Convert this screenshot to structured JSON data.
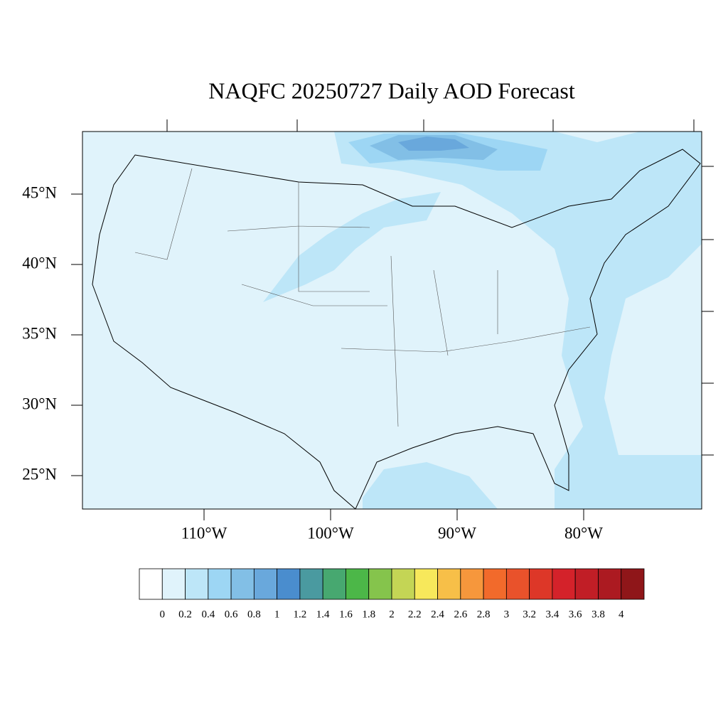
{
  "map": {
    "type": "map",
    "title": "NAQFC 20250727 Daily AOD Forecast",
    "lat_ticks": [
      {
        "value": 45,
        "label": "45°N"
      },
      {
        "value": 40,
        "label": "40°N"
      },
      {
        "value": 35,
        "label": "35°N"
      },
      {
        "value": 30,
        "label": "30°N"
      },
      {
        "value": 25,
        "label": "25°N"
      }
    ],
    "lon_ticks": [
      {
        "value": -110,
        "label": "110°W"
      },
      {
        "value": -100,
        "label": "100°W"
      },
      {
        "value": -90,
        "label": "90°W"
      },
      {
        "value": -80,
        "label": "80°W"
      }
    ],
    "colorbar": {
      "levels": [
        0,
        0.2,
        0.4,
        0.6,
        0.8,
        1,
        1.2,
        1.4,
        1.6,
        1.8,
        2,
        2.2,
        2.4,
        2.6,
        2.8,
        3,
        3.2,
        3.4,
        3.6,
        3.8,
        4
      ],
      "colors": [
        "#ffffff",
        "#e0f3fb",
        "#bde6f8",
        "#9dd6f4",
        "#82bfe6",
        "#69a8dc",
        "#4a8dce",
        "#4a9aa0",
        "#47a870",
        "#4cb748",
        "#85c44c",
        "#c4d555",
        "#f7e85b",
        "#f7bf48",
        "#f6973c",
        "#f26a2b",
        "#e9522b",
        "#dd3728",
        "#d4222a",
        "#c11e26",
        "#ac1a21",
        "#8f1619"
      ]
    }
  }
}
